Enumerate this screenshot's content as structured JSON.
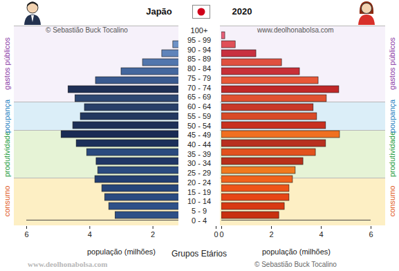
{
  "chart_data": {
    "type": "bar",
    "orientation": "horizontal",
    "title": "Japão",
    "subtitle": "2020",
    "xlabel": "população (milhões)",
    "ylabel": "Grupos Etários",
    "categories": [
      "0 - 4",
      "5 - 9",
      "10 - 14",
      "15 - 19",
      "20 - 24",
      "25 - 29",
      "30 - 34",
      "35 - 39",
      "40 - 44",
      "45 - 49",
      "50 - 54",
      "55 - 59",
      "60 - 64",
      "65 - 69",
      "70 - 74",
      "75 - 79",
      "80 - 84",
      "85 - 89",
      "90 - 94",
      "95 - 99",
      "100+"
    ],
    "series": [
      {
        "values": [
          3.19,
          3.39,
          3.52,
          3.61,
          3.83,
          3.74,
          3.79,
          4.09,
          4.42,
          4.9,
          4.53,
          4.29,
          4.16,
          4.46,
          4.68,
          3.81,
          3.0,
          2.32,
          1.71,
          1.36,
          0.05
        ],
        "colors": [
          "#2d4f86",
          "#2e5088",
          "#2a4a80",
          "#27457a",
          "#243f72",
          "#2b4b80",
          "#203766",
          "#2a4a7e",
          "#1c2f5a",
          "#1a2b54",
          "#1c2f58",
          "#22375f",
          "#283f68",
          "#2e4772",
          "#1f3056",
          "#3a5a90",
          "#44679e",
          "#5276ad",
          "#6084ba",
          "#6e92c6",
          "#7da0d0"
        ]
      },
      {
        "values": [
          2.31,
          2.53,
          2.72,
          2.72,
          2.86,
          2.97,
          3.28,
          3.78,
          4.19,
          4.75,
          4.19,
          3.83,
          3.69,
          4.22,
          4.72,
          3.89,
          3.14,
          2.42,
          1.39,
          0.56,
          0.14
        ],
        "colors": [
          "#c8300f",
          "#d83a12",
          "#e64616",
          "#ee5418",
          "#f0621c",
          "#f07a1e",
          "#b8301a",
          "#e2521e",
          "#b83020",
          "#f07020",
          "#c83020",
          "#d84a28",
          "#c83828",
          "#e05030",
          "#c02828",
          "#e85838",
          "#c83038",
          "#e05040",
          "#c83040",
          "#e05058",
          "#e8607a"
        ]
      }
    ],
    "xlim": [
      0,
      6
    ],
    "xticks": [
      0,
      2,
      4,
      6
    ],
    "annotations": [
      {
        "text": "consumo",
        "from": "0 - 4",
        "to": "20 - 24",
        "colors": [
          "#e05a1e",
          "#fdefc4"
        ]
      },
      {
        "text": "produtividade",
        "from": "25 - 29",
        "to": "45 - 49",
        "colors": [
          "#1a9a3a",
          "#e6f3d6"
        ]
      },
      {
        "text": "poupança",
        "from": "50 - 54",
        "to": "60 - 64",
        "colors": [
          "#1f7fbf",
          "#dbeef8"
        ]
      },
      {
        "text": "gastos públicos",
        "from": "65 - 69",
        "to": "100+",
        "colors": [
          "#8a3aa6",
          "#f6f1fa"
        ]
      }
    ],
    "watermarks": [
      "© Sebastião Buck Tocalino",
      "www.deolhonabolsa.com"
    ]
  }
}
